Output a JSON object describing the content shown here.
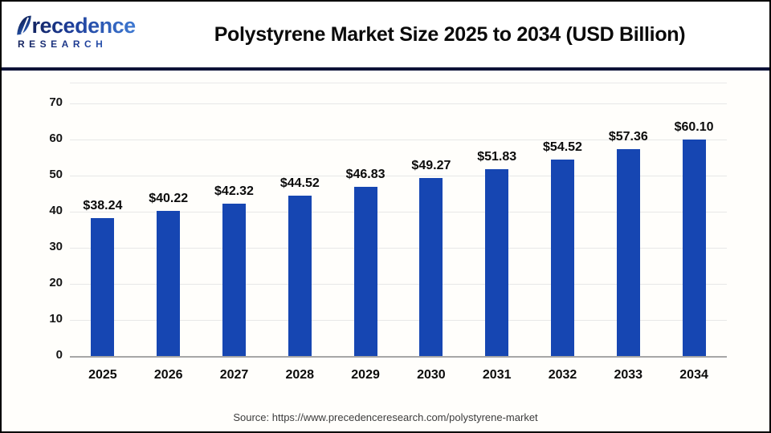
{
  "header": {
    "logo": {
      "brand_top": "Precedence",
      "brand_bottom": "RESEARCH",
      "color_dark": "#101c4e",
      "color_light": "#3e79d2"
    },
    "title": "Polystyrene Market Size 2025 to 2034 (USD Billion)"
  },
  "chart_data": {
    "type": "bar",
    "title": "Polystyrene Market Size 2025 to 2034 (USD Billion)",
    "categories": [
      "2025",
      "2026",
      "2027",
      "2028",
      "2029",
      "2030",
      "2031",
      "2032",
      "2033",
      "2034"
    ],
    "values": [
      38.24,
      40.22,
      42.32,
      44.52,
      46.83,
      49.27,
      51.83,
      54.52,
      57.36,
      60.1
    ],
    "value_labels": [
      "$38.24",
      "$40.22",
      "$42.32",
      "$44.52",
      "$46.83",
      "$49.27",
      "$51.83",
      "$54.52",
      "$57.36",
      "$60.10"
    ],
    "xlabel": "",
    "ylabel": "",
    "ylim": [
      0,
      70
    ],
    "ytick_step": 10,
    "grid": true,
    "legend": "none",
    "bar_color": "#1646b2",
    "gridline_color": "#e7e7e7",
    "baseline_color": "#a6a6a6"
  },
  "footer": {
    "source": "Source: https://www.precedenceresearch.com/polystyrene-market"
  }
}
